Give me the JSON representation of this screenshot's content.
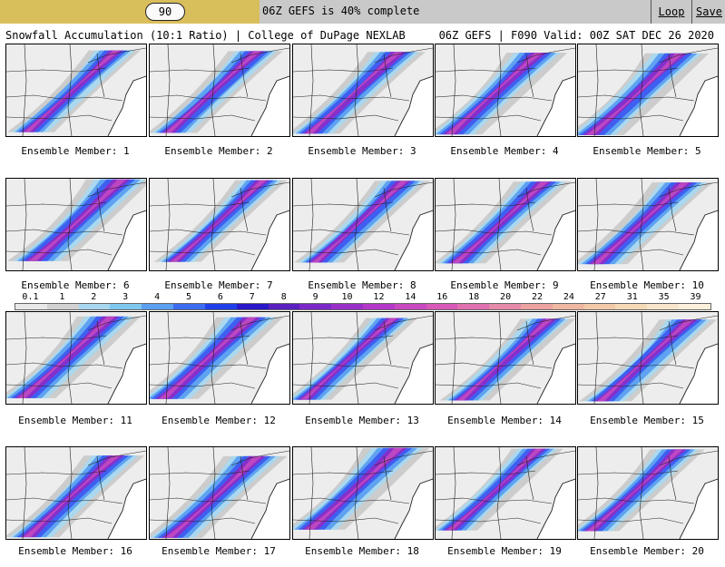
{
  "topbar": {
    "frame_value": "90",
    "status": "06Z GEFS is 40% complete",
    "progress_fraction": 0.4,
    "loop_label": "Loop",
    "save_label": "Save",
    "bar_color": "#d9be5c",
    "bg_color": "#c9c9c9"
  },
  "title": {
    "left": "Snowfall Accumulation (10:1 Ratio) | College of DuPage NEXLAB",
    "right": "06Z GEFS | F090 Valid: 00Z SAT DEC 26 2020"
  },
  "colorbar": {
    "labels": [
      "0.1",
      "1",
      "2",
      "3",
      "4",
      "5",
      "6",
      "7",
      "8",
      "9",
      "10",
      "12",
      "14",
      "16",
      "18",
      "20",
      "22",
      "24",
      "27",
      "31",
      "35",
      "39"
    ],
    "colors": [
      "#e8e8e8",
      "#d2d2d2",
      "#a8d8f0",
      "#7ec8f0",
      "#5a9ff0",
      "#3c6cf0",
      "#1f3fe8",
      "#2a18c8",
      "#5a20c0",
      "#7a28c8",
      "#9a30c8",
      "#b438c8",
      "#c848c0",
      "#d858b8",
      "#e070b0",
      "#e68aaa",
      "#eba2a0",
      "#efb8a0",
      "#f2caa8",
      "#f5dab8",
      "#f8e6cc",
      "#fbf0dc"
    ]
  },
  "members": [
    {
      "label": "Ensemble Member: 1"
    },
    {
      "label": "Ensemble Member: 2"
    },
    {
      "label": "Ensemble Member: 3"
    },
    {
      "label": "Ensemble Member: 4"
    },
    {
      "label": "Ensemble Member: 5"
    },
    {
      "label": "Ensemble Member: 6"
    },
    {
      "label": "Ensemble Member: 7"
    },
    {
      "label": "Ensemble Member: 8"
    },
    {
      "label": "Ensemble Member: 9"
    },
    {
      "label": "Ensemble Member: 10"
    },
    {
      "label": "Ensemble Member: 11"
    },
    {
      "label": "Ensemble Member: 12"
    },
    {
      "label": "Ensemble Member: 13"
    },
    {
      "label": "Ensemble Member: 14"
    },
    {
      "label": "Ensemble Member: 15"
    },
    {
      "label": "Ensemble Member: 16"
    },
    {
      "label": "Ensemble Member: 17"
    },
    {
      "label": "Ensemble Member: 18"
    },
    {
      "label": "Ensemble Member: 19"
    },
    {
      "label": "Ensemble Member: 20"
    }
  ]
}
